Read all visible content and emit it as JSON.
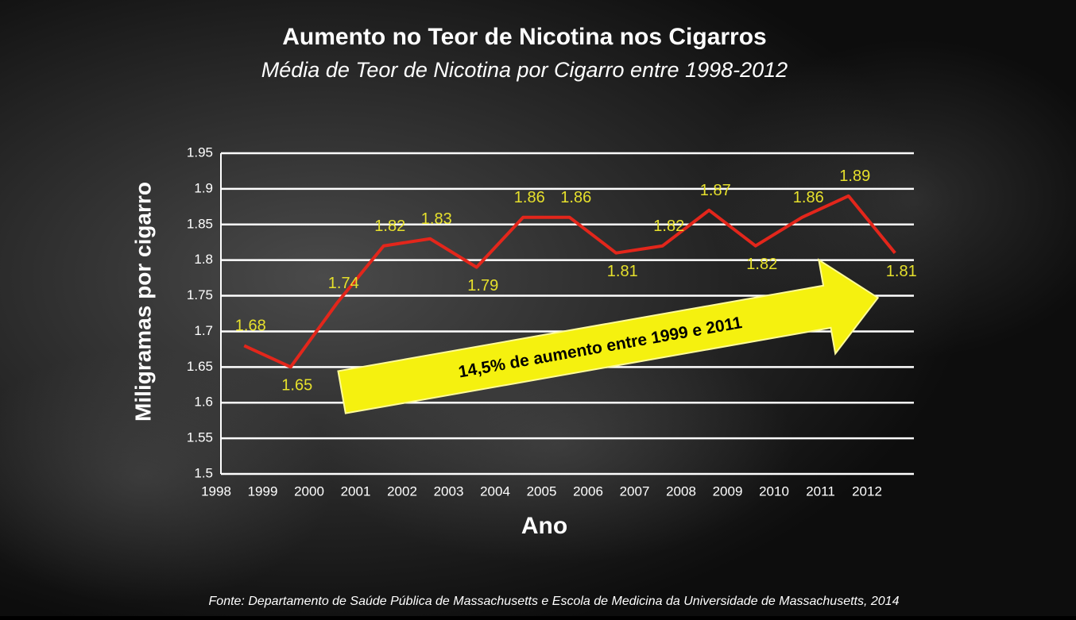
{
  "chart_data": {
    "type": "line",
    "title": "Aumento no Teor de Nicotina nos Cigarros",
    "subtitle": "Média de Teor de Nicotina por Cigarro entre 1998-2012",
    "y_label": "Miligramas por cigarro",
    "x_label": "Ano",
    "annotation": "14,5% de aumento entre 1999 e 2011",
    "source": "Fonte: Departamento de Saúde Pública de Massachusetts e Escola de Medicina da Universidade de Massachusetts, 2014",
    "categories": [
      "1998",
      "1999",
      "2000",
      "2001",
      "2002",
      "2003",
      "2004",
      "2005",
      "2006",
      "2007",
      "2008",
      "2009",
      "2010",
      "2011",
      "2012"
    ],
    "series": [
      {
        "name": "Teor de nicotina",
        "color": "#e3261b",
        "values": [
          1.68,
          1.65,
          1.74,
          1.82,
          1.83,
          1.79,
          1.86,
          1.86,
          1.81,
          1.82,
          1.87,
          1.82,
          1.86,
          1.89,
          1.81
        ]
      }
    ],
    "ylim": [
      1.5,
      1.95
    ],
    "yticks": [
      1.5,
      1.55,
      1.6,
      1.65,
      1.7,
      1.75,
      1.8,
      1.85,
      1.9,
      1.95
    ],
    "grid": true
  }
}
